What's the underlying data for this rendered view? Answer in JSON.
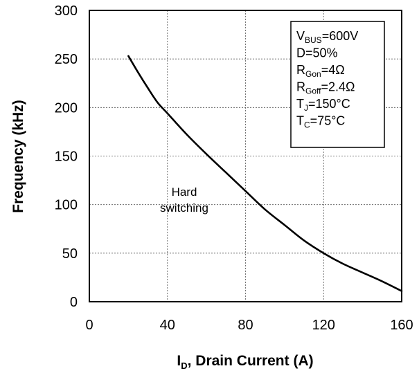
{
  "chart_data": {
    "type": "line",
    "xlabel_main": "I",
    "xlabel_sub": "D",
    "xlabel_rest": ", Drain Current (A)",
    "ylabel": "Frequency (kHz)",
    "xlim": [
      0,
      160
    ],
    "ylim": [
      0,
      300
    ],
    "xticks": [
      "0",
      "40",
      "80",
      "120",
      "160"
    ],
    "yticks": [
      "0",
      "50",
      "100",
      "150",
      "200",
      "250",
      "300"
    ],
    "grid": true,
    "series": [
      {
        "x": [
          20,
          25,
          30,
          35,
          40,
          50,
          60,
          70,
          80,
          90,
          100,
          110,
          120,
          130,
          140,
          150,
          160
        ],
        "y": [
          253,
          236,
          220,
          205,
          194,
          172,
          152,
          133,
          114,
          95,
          79,
          63,
          50,
          39,
          30,
          21,
          11
        ]
      }
    ],
    "annotation": {
      "line1": "Hard",
      "line2": "switching"
    },
    "params": [
      {
        "main": "V",
        "sub": "BUS",
        "rest": "=600V"
      },
      {
        "main": "D=50%",
        "sub": "",
        "rest": ""
      },
      {
        "main": "R",
        "sub": "Gon",
        "rest": "=4Ω"
      },
      {
        "main": "R",
        "sub": "Goff",
        "rest": "=2.4Ω"
      },
      {
        "main": "T",
        "sub": "J",
        "rest": "=150°C"
      },
      {
        "main": "T",
        "sub": "C",
        "rest": "=75°C"
      }
    ]
  }
}
